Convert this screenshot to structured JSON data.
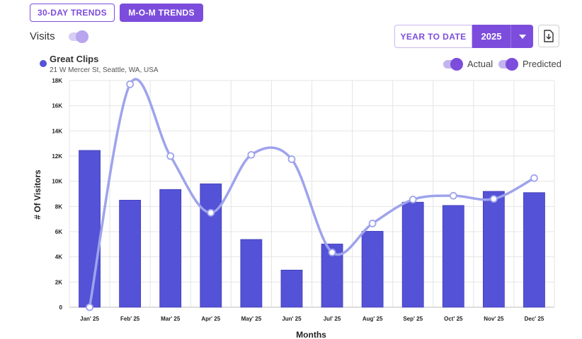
{
  "tabs": {
    "trends_30_day": "30-DAY TRENDS",
    "mom_trends": "M-O-M TRENDS"
  },
  "visits_toggle_label": "Visits",
  "period": {
    "range_label": "YEAR TO DATE",
    "year": "2025"
  },
  "icons": {
    "dropdown": "caret-down-icon",
    "download": "download-icon"
  },
  "location": {
    "name": "Great Clips",
    "address": "21 W Mercer St, Seattle, WA, USA"
  },
  "legend": {
    "actual": "Actual",
    "predicted": "Predicted"
  },
  "colors": {
    "accent": "#7c4ddc",
    "bars": "#5452d6",
    "predicted_line": "#9ea3ec"
  },
  "chart_data": {
    "type": "bar",
    "categories": [
      "Jan' 25",
      "Feb' 25",
      "Mar' 25",
      "Apr' 25",
      "May' 25",
      "Jun' 25",
      "Jul' 25",
      "Aug' 25",
      "Sep' 25",
      "Oct' 25",
      "Nov' 25",
      "Dec' 25"
    ],
    "series": [
      {
        "name": "Actual",
        "type": "bar",
        "values": [
          12450,
          8500,
          9350,
          9800,
          5380,
          2950,
          5020,
          6030,
          8340,
          8080,
          9200,
          9100
        ]
      },
      {
        "name": "Predicted",
        "type": "line",
        "values": [
          0,
          17700,
          12000,
          7500,
          12100,
          11750,
          4350,
          6650,
          8550,
          8850,
          8600,
          10250
        ]
      }
    ],
    "xlabel": "Months",
    "ylabel": "# Of Visitors",
    "ylim": [
      0,
      18000
    ],
    "yticks": [
      "0",
      "2K",
      "4K",
      "6K",
      "8K",
      "10K",
      "12K",
      "14K",
      "16K",
      "18K"
    ],
    "grid": true
  }
}
